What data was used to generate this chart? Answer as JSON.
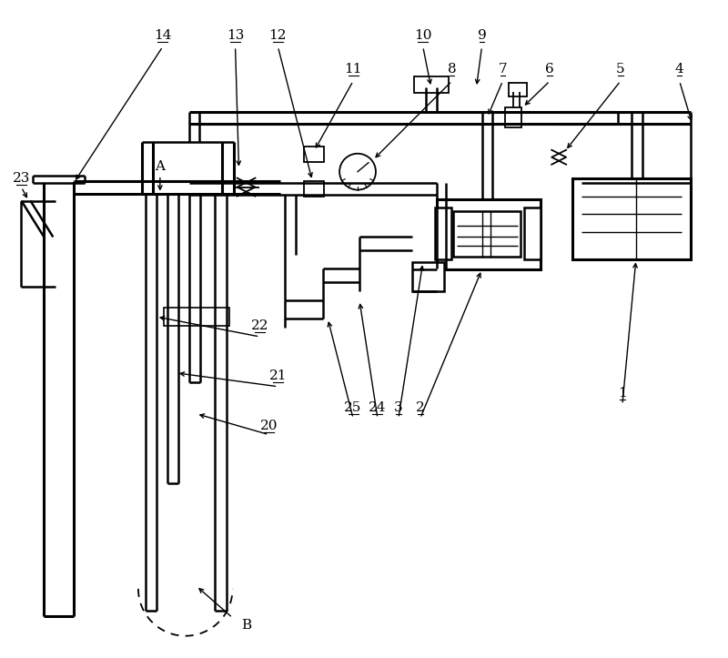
{
  "fig_width": 8.0,
  "fig_height": 7.23,
  "dpi": 100,
  "bg_color": "#ffffff",
  "lw_thin": 1.2,
  "lw_med": 1.8,
  "lw_thick": 2.2
}
